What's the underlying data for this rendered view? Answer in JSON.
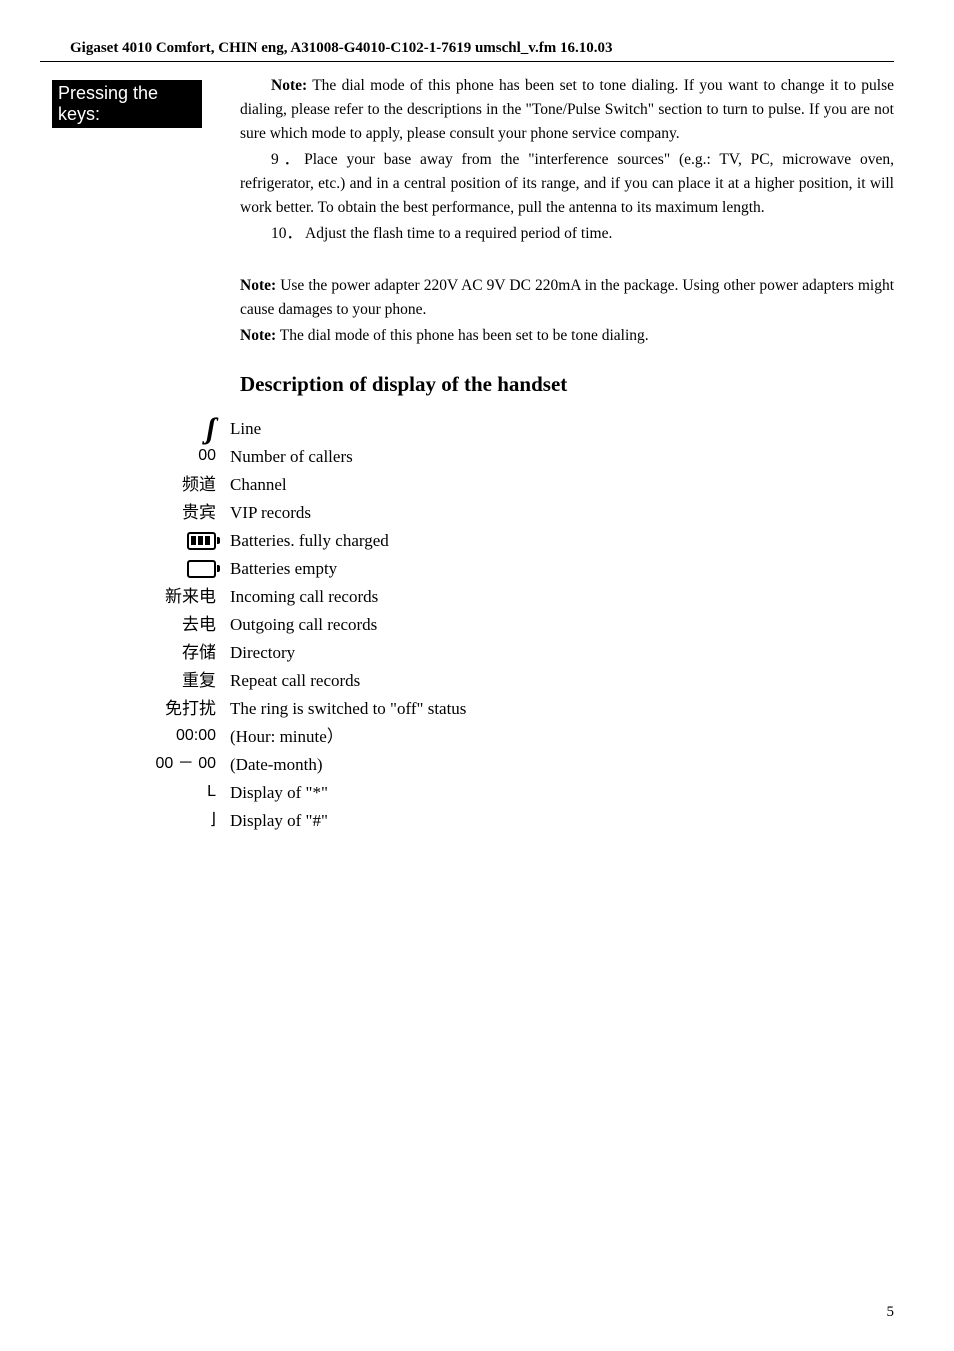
{
  "header": "Gigaset 4010 Comfort, CHIN eng, A31008-G4010-C102-1-7619 umschl_v.fm 16.10.03",
  "sidebar_label": "Pressing the keys:",
  "body": {
    "p1_prefix_bold": "Note:",
    "p1": " The dial mode of this phone has been set to tone dialing. If you want to change it to pulse dialing, please refer to the descriptions in the \"Tone/Pulse Switch\" section to turn to pulse. If you are not sure which mode to apply, please consult your phone service company.",
    "p2": "9．Place your base away from the \"interference sources\" (e.g.: TV, PC, microwave oven, refrigerator, etc.) and in a central position of its range, and if you can place it at a higher position, it will work better. To obtain the best performance, pull the antenna to its maximum length.",
    "p3": "10． Adjust the flash time to a required period of time.",
    "n1_bold": "Note:",
    "n1": " Use the power adapter 220V AC 9V DC 220mA in the package. Using other power adapters might cause damages to your phone.",
    "n2_bold": "Note:",
    "n2": " The dial mode of this phone has been set to be tone dialing.",
    "heading": "Description of display of the handset"
  },
  "icons": {
    "line": {
      "label": "Line"
    },
    "callers": {
      "sym": "00",
      "label": "Number of callers"
    },
    "channel": {
      "sym": "频道",
      "label": "Channel"
    },
    "vip": {
      "sym": "贵宾",
      "label": "VIP records"
    },
    "batt_full": {
      "label": "Batteries. fully charged"
    },
    "batt_empty": {
      "label": "Batteries empty"
    },
    "incoming": {
      "sym": "新来电",
      "label": "Incoming call records"
    },
    "outgoing": {
      "sym": "去电",
      "label": "Outgoing call records"
    },
    "directory": {
      "sym": "存储",
      "label": "Directory"
    },
    "repeat": {
      "sym": "重复",
      "label": "Repeat call records"
    },
    "dnd": {
      "sym": "免打扰",
      "label": "The ring is switched to \"off\" status"
    },
    "hourmin": {
      "sym": "00:00",
      "label": "(Hour: minute）"
    },
    "datemonth": {
      "sym": "00 － 00",
      "label": "(Date-month)"
    },
    "star": {
      "sym": "L",
      "label": "Display of \"*\""
    },
    "hash": {
      "sym": "⌋",
      "label": "Display of \"#\""
    }
  },
  "page_number": "5"
}
